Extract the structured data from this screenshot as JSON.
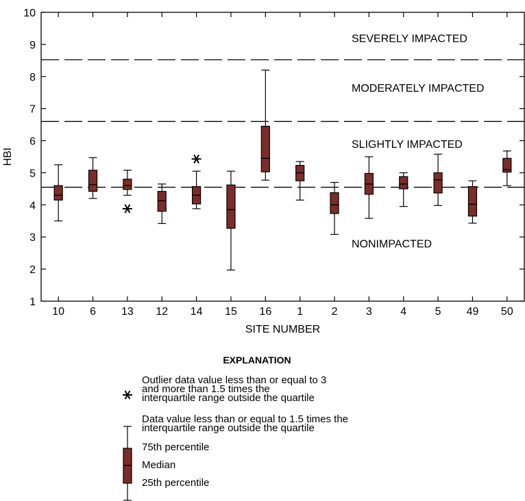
{
  "chart_data": {
    "type": "boxplot",
    "xlabel": "SITE NUMBER",
    "ylabel": "HBI",
    "ylim": [
      1,
      10
    ],
    "yticks": [
      1,
      2,
      3,
      4,
      5,
      6,
      7,
      8,
      9,
      10
    ],
    "categories": [
      "10",
      "6",
      "13",
      "12",
      "14",
      "15",
      "16",
      "1",
      "2",
      "3",
      "4",
      "5",
      "49",
      "50"
    ],
    "boxes": [
      {
        "site": "10",
        "whisker_low": 3.5,
        "q1": 4.15,
        "median": 4.3,
        "q3": 4.6,
        "whisker_high": 5.25,
        "outliers": []
      },
      {
        "site": "6",
        "whisker_low": 4.2,
        "q1": 4.42,
        "median": 4.63,
        "q3": 5.08,
        "whisker_high": 5.47,
        "outliers": []
      },
      {
        "site": "13",
        "whisker_low": 4.3,
        "q1": 4.48,
        "median": 4.6,
        "q3": 4.8,
        "whisker_high": 5.08,
        "outliers": [
          3.88
        ]
      },
      {
        "site": "12",
        "whisker_low": 3.42,
        "q1": 3.8,
        "median": 4.13,
        "q3": 4.42,
        "whisker_high": 4.65,
        "outliers": []
      },
      {
        "site": "14",
        "whisker_low": 3.88,
        "q1": 4.03,
        "median": 4.3,
        "q3": 4.57,
        "whisker_high": 5.05,
        "outliers": [
          5.43
        ]
      },
      {
        "site": "15",
        "whisker_low": 1.97,
        "q1": 3.27,
        "median": 3.85,
        "q3": 4.62,
        "whisker_high": 5.05,
        "outliers": []
      },
      {
        "site": "16",
        "whisker_low": 4.77,
        "q1": 5.03,
        "median": 5.45,
        "q3": 6.45,
        "whisker_high": 8.2,
        "outliers": []
      },
      {
        "site": "1",
        "whisker_low": 4.15,
        "q1": 4.75,
        "median": 5.0,
        "q3": 5.23,
        "whisker_high": 5.35,
        "outliers": []
      },
      {
        "site": "2",
        "whisker_low": 3.08,
        "q1": 3.73,
        "median": 4.0,
        "q3": 4.38,
        "whisker_high": 4.7,
        "outliers": []
      },
      {
        "site": "3",
        "whisker_low": 3.58,
        "q1": 4.33,
        "median": 4.65,
        "q3": 4.98,
        "whisker_high": 5.5,
        "outliers": []
      },
      {
        "site": "4",
        "whisker_low": 3.95,
        "q1": 4.5,
        "median": 4.65,
        "q3": 4.88,
        "whisker_high": 5.0,
        "outliers": []
      },
      {
        "site": "5",
        "whisker_low": 3.98,
        "q1": 4.37,
        "median": 4.78,
        "q3": 5.0,
        "whisker_high": 5.58,
        "outliers": []
      },
      {
        "site": "49",
        "whisker_low": 3.43,
        "q1": 3.65,
        "median": 4.02,
        "q3": 4.57,
        "whisker_high": 4.75,
        "outliers": []
      },
      {
        "site": "50",
        "whisker_low": 4.6,
        "q1": 5.02,
        "median": 5.1,
        "q3": 5.45,
        "whisker_high": 5.68,
        "outliers": []
      }
    ],
    "threshold_lines": [
      4.55,
      6.6,
      8.52
    ],
    "zone_labels": [
      {
        "text": "SEVERELY IMPACTED",
        "y": 9.2
      },
      {
        "text": "MODERATELY IMPACTED",
        "y": 7.65
      },
      {
        "text": "SLIGHTLY IMPACTED",
        "y": 5.9
      },
      {
        "text": "NONIMPACTED",
        "y": 2.8
      }
    ],
    "grid": false,
    "box_color": "#7b2d2a",
    "legend": {
      "title": "EXPLANATION",
      "outlier_text": [
        "Outlier data value less than or equal to 3",
        "and more than 1.5 times the",
        "interquartile range outside the quartile"
      ],
      "whisker_text": [
        "Data value less than or equal to 1.5 times the",
        "interquartile range outside the quartile"
      ],
      "q3_label": "75th percentile",
      "median_label": "Median",
      "q1_label": "25th percentile"
    }
  }
}
